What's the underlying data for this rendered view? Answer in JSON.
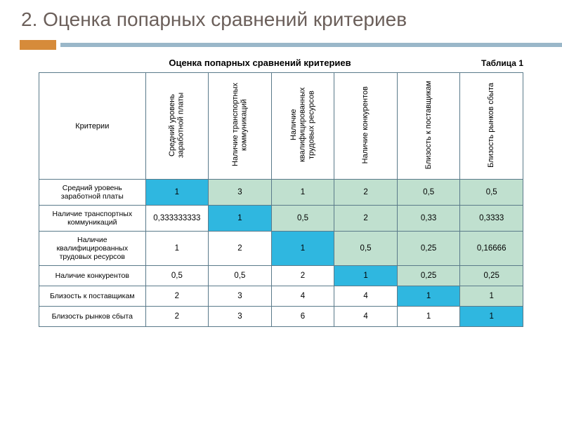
{
  "title": "2. Оценка попарных сравнений критериев",
  "caption": "Оценка попарных сравнений критериев",
  "table_label": "Таблица 1",
  "corner_header": "Критерии",
  "columns": [
    "Средний уровень заработной платы",
    "Наличие транспортных коммуникаций",
    "Наличие квалифицированных трудовых ресурсов",
    "Наличие конкурентов",
    "Близость к поставщикам",
    "Близость рынков сбыта"
  ],
  "rows": [
    {
      "label": "Средний уровень заработной платы",
      "cells": [
        {
          "v": "1",
          "c": "#2fb7e0"
        },
        {
          "v": "3",
          "c": "#c0e0cf"
        },
        {
          "v": "1",
          "c": "#c0e0cf"
        },
        {
          "v": "2",
          "c": "#c0e0cf"
        },
        {
          "v": "0,5",
          "c": "#c0e0cf"
        },
        {
          "v": "0,5",
          "c": "#c0e0cf"
        }
      ]
    },
    {
      "label": "Наличие транспортных коммуникаций",
      "cells": [
        {
          "v": "0,333333333",
          "c": "#ffffff"
        },
        {
          "v": "1",
          "c": "#2fb7e0"
        },
        {
          "v": "0,5",
          "c": "#c0e0cf"
        },
        {
          "v": "2",
          "c": "#c0e0cf"
        },
        {
          "v": "0,33",
          "c": "#c0e0cf"
        },
        {
          "v": "0,3333",
          "c": "#c0e0cf"
        }
      ]
    },
    {
      "label": "Наличие квалифицированных трудовых ресурсов",
      "cells": [
        {
          "v": "1",
          "c": "#ffffff"
        },
        {
          "v": "2",
          "c": "#ffffff"
        },
        {
          "v": "1",
          "c": "#2fb7e0"
        },
        {
          "v": "0,5",
          "c": "#c0e0cf"
        },
        {
          "v": "0,25",
          "c": "#c0e0cf"
        },
        {
          "v": "0,16666",
          "c": "#c0e0cf"
        }
      ]
    },
    {
      "label": "Наличие конкурентов",
      "cells": [
        {
          "v": "0,5",
          "c": "#ffffff"
        },
        {
          "v": "0,5",
          "c": "#ffffff"
        },
        {
          "v": "2",
          "c": "#ffffff"
        },
        {
          "v": "1",
          "c": "#2fb7e0"
        },
        {
          "v": "0,25",
          "c": "#c0e0cf"
        },
        {
          "v": "0,25",
          "c": "#c0e0cf"
        }
      ]
    },
    {
      "label": "Близость к поставщикам",
      "cells": [
        {
          "v": "2",
          "c": "#ffffff"
        },
        {
          "v": "3",
          "c": "#ffffff"
        },
        {
          "v": "4",
          "c": "#ffffff"
        },
        {
          "v": "4",
          "c": "#ffffff"
        },
        {
          "v": "1",
          "c": "#2fb7e0"
        },
        {
          "v": "1",
          "c": "#c0e0cf"
        }
      ]
    },
    {
      "label": "Близость рынков сбыта",
      "cells": [
        {
          "v": "2",
          "c": "#ffffff"
        },
        {
          "v": "3",
          "c": "#ffffff"
        },
        {
          "v": "6",
          "c": "#ffffff"
        },
        {
          "v": "4",
          "c": "#ffffff"
        },
        {
          "v": "1",
          "c": "#ffffff"
        },
        {
          "v": "1",
          "c": "#2fb7e0"
        }
      ]
    }
  ],
  "colors": {
    "title": "#6b5f5a",
    "accent": "#d68b3a",
    "divider": "#9ab7c9",
    "border": "#5a7a8a",
    "diag": "#2fb7e0",
    "upper": "#c0e0cf",
    "plain": "#ffffff"
  }
}
